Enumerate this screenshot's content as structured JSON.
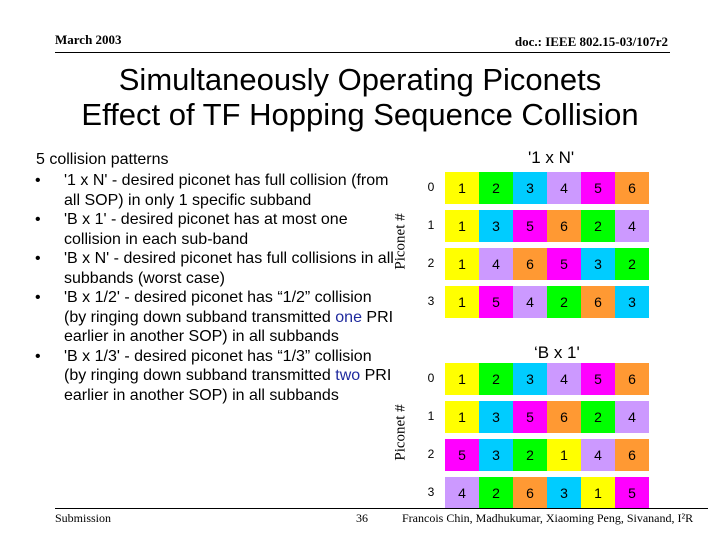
{
  "header": {
    "date": "March 2003",
    "doc": "doc.: IEEE 802.15-03/107r2"
  },
  "title_lines": [
    "Simultaneously Operating Piconets",
    "Effect of TF Hopping Sequence Collision"
  ],
  "intro": "5 collision patterns",
  "bullets": [
    {
      "segments": [
        "'1 x N' - desired piconet has full collision (from all SOP) in only 1 specific subband"
      ]
    },
    {
      "segments": [
        "'B x 1' - desired piconet has at most one collision in each sub-band"
      ]
    },
    {
      "segments": [
        "'B x N' - desired piconet has full collisions in all subbands (worst case)"
      ]
    },
    {
      "segments": [
        "'B x 1/2' - desired piconet has “1/2” collision (by ringing down subband transmitted ",
        "one",
        " PRI earlier in another SOP) in all subbands"
      ]
    },
    {
      "segments": [
        "'B x 1/3' - desired piconet has “1/3” collision (by ringing down subband transmitted ",
        "two",
        " PRI earlier in another SOP) in all subbands"
      ]
    }
  ],
  "bullet_symbol": "•",
  "axis_label": "Piconet #",
  "colors": {
    "1": "#ffff00",
    "2": "#00ff00",
    "3": "#00ccff",
    "4": "#cc99ff",
    "5": "#ff00ff",
    "6": "#ff9933"
  },
  "tables": [
    {
      "title": "'1 x N'",
      "row_labels": [
        "0",
        "1",
        "2",
        "3"
      ],
      "rows": [
        [
          1,
          2,
          3,
          4,
          5,
          6
        ],
        [
          1,
          3,
          5,
          6,
          2,
          4
        ],
        [
          1,
          4,
          6,
          5,
          3,
          2
        ],
        [
          1,
          5,
          4,
          2,
          6,
          3
        ]
      ]
    },
    {
      "title": "‘B x 1'",
      "row_labels": [
        "0",
        "1",
        "2",
        "3"
      ],
      "rows": [
        [
          1,
          2,
          3,
          4,
          5,
          6
        ],
        [
          1,
          3,
          5,
          6,
          2,
          4
        ],
        [
          5,
          3,
          2,
          1,
          4,
          6
        ],
        [
          4,
          2,
          6,
          3,
          1,
          5
        ]
      ]
    }
  ],
  "footer": {
    "left": "Submission",
    "page": "36",
    "authors": "Francois Chin, Madhukumar, Xiaoming Peng, Sivanand, I²R"
  }
}
